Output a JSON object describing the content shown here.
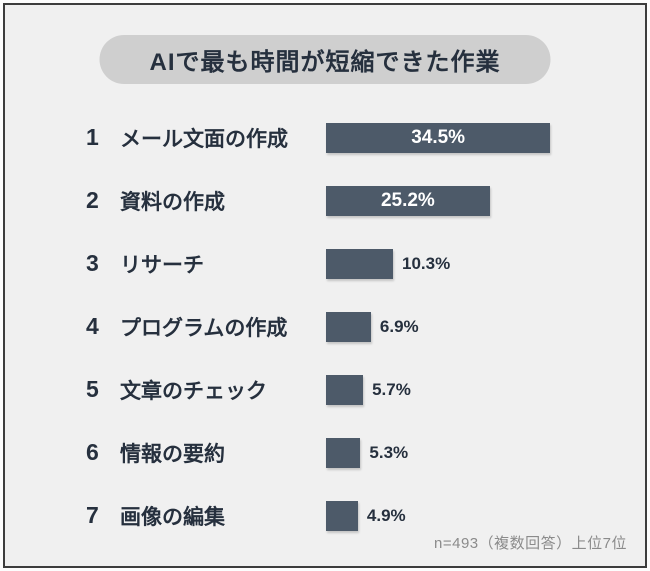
{
  "title": "AIで最も時間が短縮できた作業",
  "footer_note": "n=493（複数回答）上位7位",
  "colors": {
    "bar": "#4d5a69",
    "card_background": "#f0f0f0",
    "pill_background": "#cfcfcf",
    "title_text": "#26303e",
    "label_text": "#26303e",
    "value_text_inside_bar": "#ffffff",
    "value_text_outside_bar": "#26303e",
    "footer_text": "#8b8b8b",
    "frame_border": "#3d3d3d"
  },
  "chart_data": {
    "type": "bar",
    "orientation": "horizontal",
    "title": "AIで最も時間が短縮できた作業",
    "unit": "%",
    "ranks": [
      1,
      2,
      3,
      4,
      5,
      6,
      7
    ],
    "categories": [
      "メール文面の作成",
      "資料の作成",
      "リサーチ",
      "プログラムの作成",
      "文章のチェック",
      "情報の要約",
      "画像の編集"
    ],
    "values": [
      34.5,
      25.2,
      10.3,
      6.9,
      5.7,
      5.3,
      4.9
    ],
    "value_labels": [
      "34.5%",
      "25.2%",
      "10.3%",
      "6.9%",
      "5.7%",
      "5.3%",
      "4.9%"
    ],
    "xlim": [
      0,
      36
    ],
    "grid": false,
    "legend": false,
    "note": "n=493（複数回答）上位7位"
  }
}
